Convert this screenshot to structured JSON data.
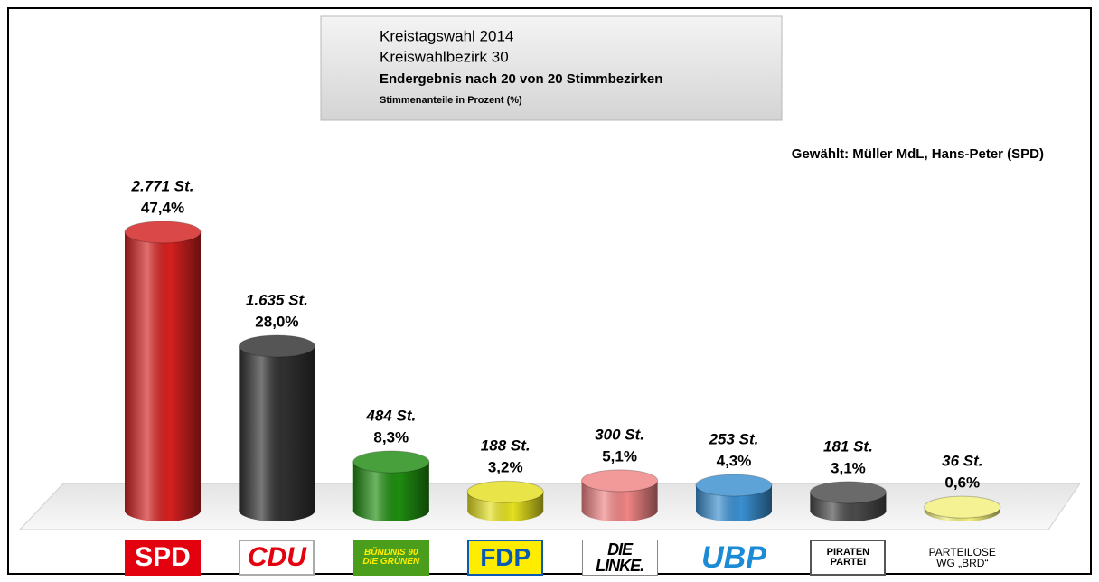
{
  "chart_data": {
    "type": "bar3d",
    "title": "Kreistagswahl 2014",
    "subtitle": "Kreiswahlbezirk 30",
    "subtitle2": "Endergebnis nach 20 von 20 Stimmbezirken",
    "note": "Stimmenanteile in Prozent (%)",
    "annotation": "Gewählt: Müller MdL, Hans-Peter (SPD)",
    "categories": [
      "SPD",
      "CDU",
      "BÜNDNIS 90\nDIE GRÜNEN",
      "FDP",
      "DIE LINKE.",
      "UBP",
      "PIRATEN\nPARTEI",
      "PARTEILOSE\nWG „BRD“"
    ],
    "values": [
      47.4,
      28.0,
      8.3,
      3.2,
      5.1,
      4.3,
      3.1,
      0.6
    ],
    "value_labels": [
      "47,4%",
      "28,0%",
      "8,3%",
      "3,2%",
      "5,1%",
      "4,3%",
      "3,1%",
      "0,6%"
    ],
    "votes": [
      2771,
      1635,
      484,
      188,
      300,
      253,
      181,
      36
    ],
    "vote_labels": [
      "2.771 St.",
      "1.635 St.",
      "484 St.",
      "188 St.",
      "300 St.",
      "253 St.",
      "181 St.",
      "36 St."
    ],
    "colors": [
      "#d42020",
      "#303030",
      "#1f8c10",
      "#e4e020",
      "#f08484",
      "#3a8fd0",
      "#4a4a4a",
      "#f2ef7a"
    ]
  }
}
